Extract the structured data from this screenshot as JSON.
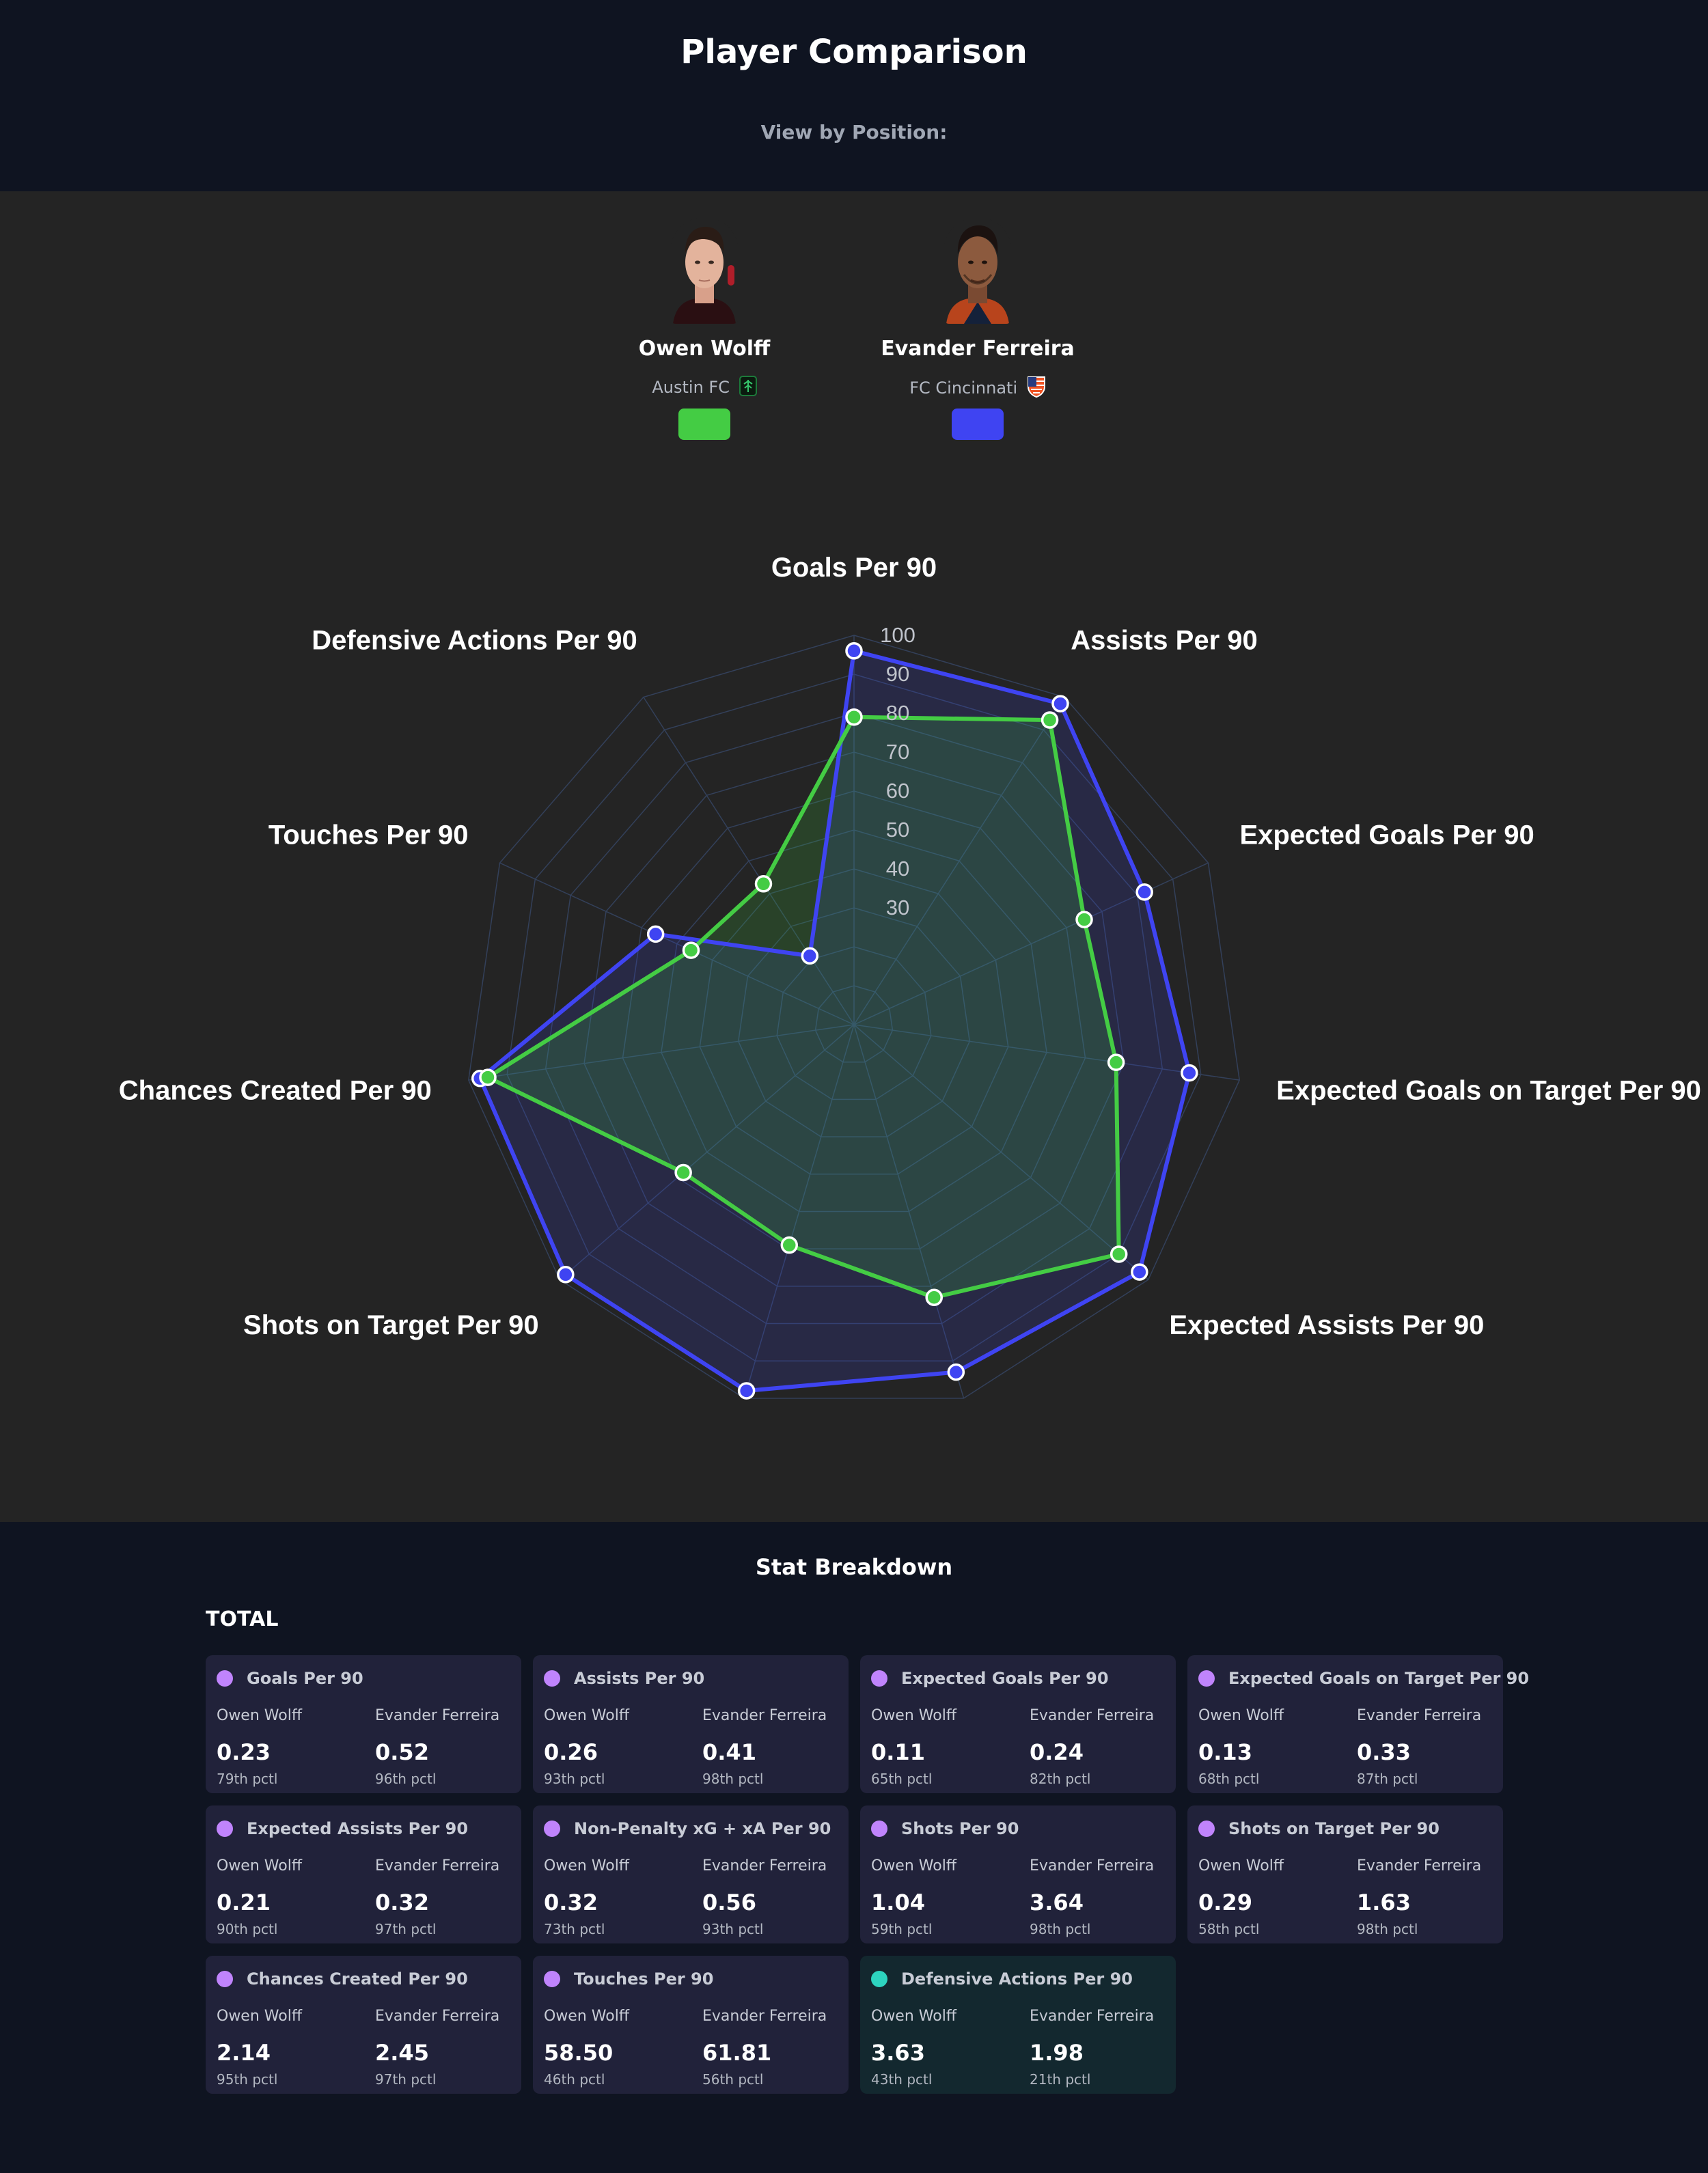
{
  "header": {
    "title": "Player Comparison",
    "view_label": "View by Position:"
  },
  "players": [
    {
      "name": "Owen Wolff",
      "club": "Austin FC",
      "color": "#44cc44"
    },
    {
      "name": "Evander Ferreira",
      "club": "FC Cincinnati",
      "color": "#3f44f2"
    }
  ],
  "chart_data": {
    "type": "radar",
    "axes": [
      "Goals Per 90",
      "Assists Per 90",
      "Expected Goals Per 90",
      "Expected Goals on Target Per 90",
      "Expected Assists Per 90",
      "Non-Penalty xG + xA Per 90",
      "Shots Per 90",
      "Shots on Target Per 90",
      "Chances Created Per 90",
      "Touches Per 90",
      "Defensive Actions Per 90"
    ],
    "rticks": [
      "30",
      "40",
      "50",
      "60",
      "70",
      "80",
      "90",
      "100"
    ],
    "rmin": 0,
    "rmax": 100,
    "series": [
      {
        "name": "Evander Ferreira",
        "color": "#3f44f2",
        "values": [
          96,
          98,
          82,
          87,
          97,
          93,
          98,
          98,
          97,
          56,
          21
        ]
      },
      {
        "name": "Owen Wolff",
        "color": "#44cc44",
        "values": [
          79,
          93,
          65,
          68,
          90,
          73,
          59,
          58,
          95,
          46,
          43
        ]
      }
    ]
  },
  "stats": {
    "title": "Stat Breakdown",
    "total_label": "TOTAL",
    "cards": [
      {
        "title": "Goals Per 90",
        "a_name": "Owen Wolff",
        "a_val": "0.23",
        "a_pct": "79th pctl",
        "b_name": "Evander Ferreira",
        "b_val": "0.52",
        "b_pct": "96th pctl"
      },
      {
        "title": "Assists Per 90",
        "a_name": "Owen Wolff",
        "a_val": "0.26",
        "a_pct": "93th pctl",
        "b_name": "Evander Ferreira",
        "b_val": "0.41",
        "b_pct": "98th pctl"
      },
      {
        "title": "Expected Goals Per 90",
        "a_name": "Owen Wolff",
        "a_val": "0.11",
        "a_pct": "65th pctl",
        "b_name": "Evander Ferreira",
        "b_val": "0.24",
        "b_pct": "82th pctl"
      },
      {
        "title": "Expected Goals on Target Per 90",
        "a_name": "Owen Wolff",
        "a_val": "0.13",
        "a_pct": "68th pctl",
        "b_name": "Evander Ferreira",
        "b_val": "0.33",
        "b_pct": "87th pctl"
      },
      {
        "title": "Expected Assists Per 90",
        "a_name": "Owen Wolff",
        "a_val": "0.21",
        "a_pct": "90th pctl",
        "b_name": "Evander Ferreira",
        "b_val": "0.32",
        "b_pct": "97th pctl"
      },
      {
        "title": "Non-Penalty xG + xA Per 90",
        "a_name": "Owen Wolff",
        "a_val": "0.32",
        "a_pct": "73th pctl",
        "b_name": "Evander Ferreira",
        "b_val": "0.56",
        "b_pct": "93th pctl"
      },
      {
        "title": "Shots Per 90",
        "a_name": "Owen Wolff",
        "a_val": "1.04",
        "a_pct": "59th pctl",
        "b_name": "Evander Ferreira",
        "b_val": "3.64",
        "b_pct": "98th pctl"
      },
      {
        "title": "Shots on Target Per 90",
        "a_name": "Owen Wolff",
        "a_val": "0.29",
        "a_pct": "58th pctl",
        "b_name": "Evander Ferreira",
        "b_val": "1.63",
        "b_pct": "98th pctl"
      },
      {
        "title": "Chances Created Per 90",
        "a_name": "Owen Wolff",
        "a_val": "2.14",
        "a_pct": "95th pctl",
        "b_name": "Evander Ferreira",
        "b_val": "2.45",
        "b_pct": "97th pctl"
      },
      {
        "title": "Touches Per 90",
        "a_name": "Owen Wolff",
        "a_val": "58.50",
        "a_pct": "46th pctl",
        "b_name": "Evander Ferreira",
        "b_val": "61.81",
        "b_pct": "56th pctl"
      },
      {
        "title": "Defensive Actions Per 90",
        "a_name": "Owen Wolff",
        "a_val": "3.63",
        "a_pct": "43th pctl",
        "b_name": "Evander Ferreira",
        "b_val": "1.98",
        "b_pct": "21th pctl"
      }
    ]
  }
}
